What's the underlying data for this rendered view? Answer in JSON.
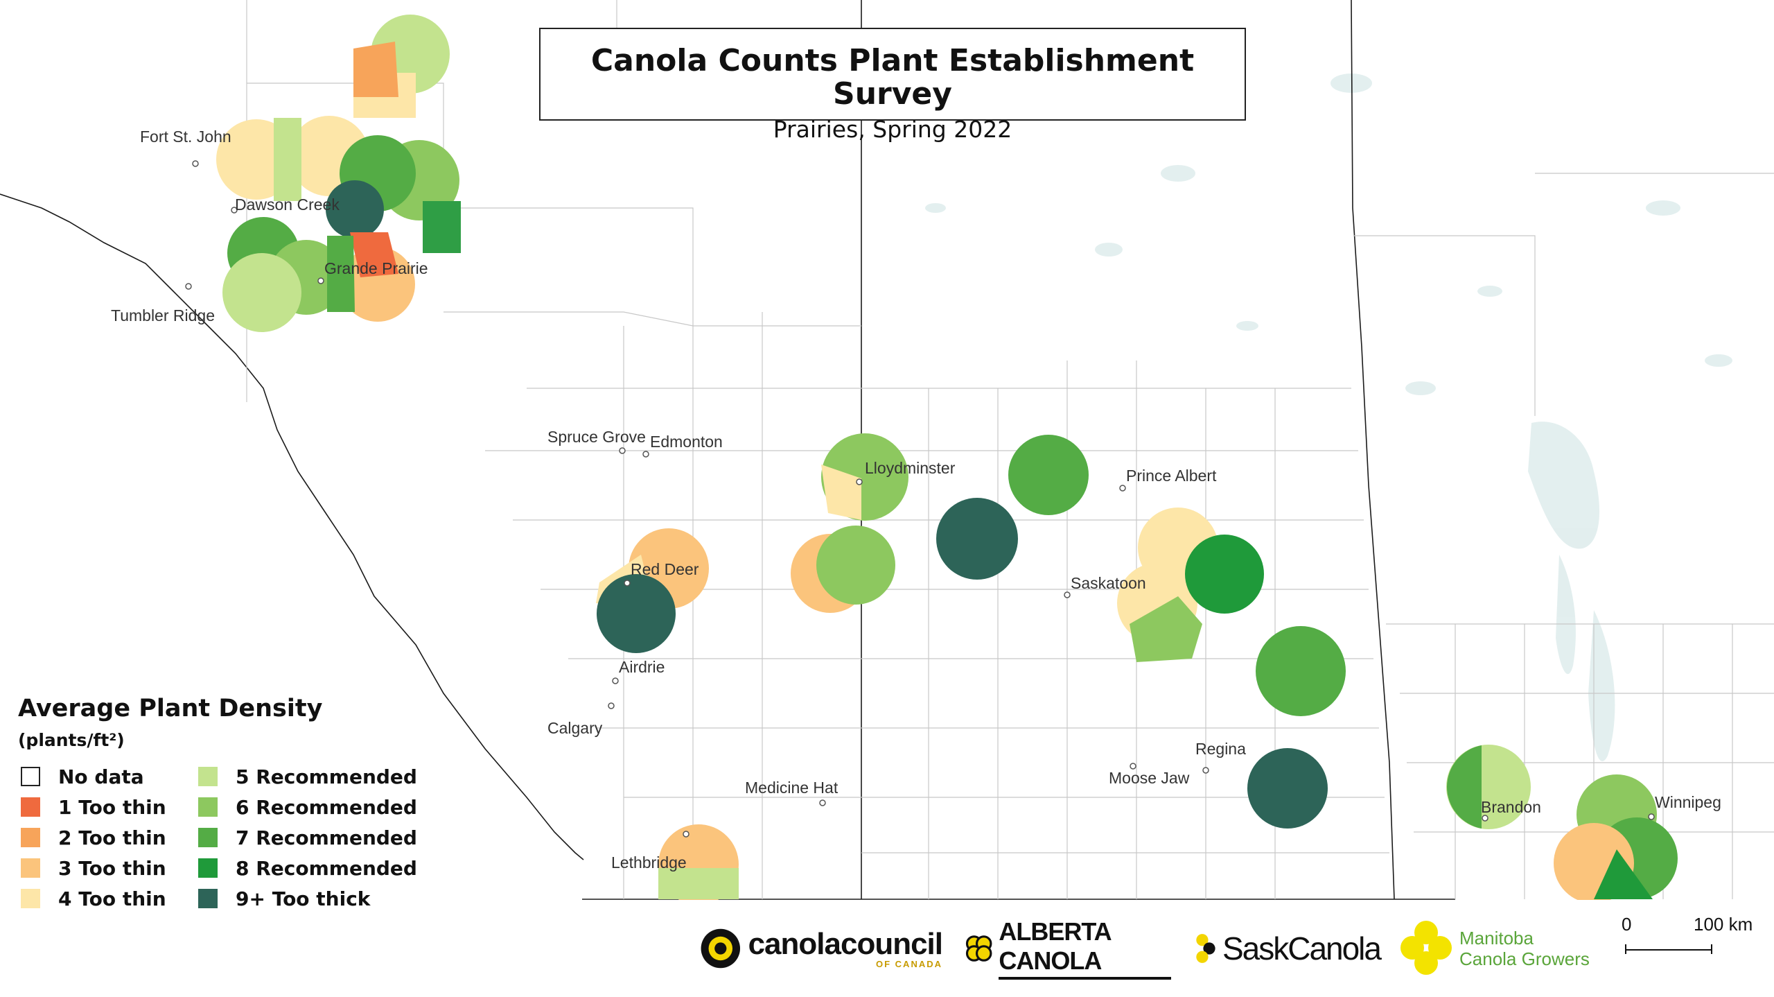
{
  "title": "Canola Counts Plant Establishment Survey",
  "subtitle": "Prairies, Spring 2022",
  "legend": {
    "title": "Average Plant Density",
    "unit": "(plants/ft²)",
    "items": [
      {
        "label": "No data",
        "color": "#ffffff"
      },
      {
        "label": "1 Too thin",
        "color": "#ef6a3e"
      },
      {
        "label": "2 Too thin",
        "color": "#f7a45a"
      },
      {
        "label": "3 Too thin",
        "color": "#fbc47c"
      },
      {
        "label": "4 Too thin",
        "color": "#fde6a8"
      },
      {
        "label": "5 Recommended",
        "color": "#c3e38e"
      },
      {
        "label": "6 Recommended",
        "color": "#8dc85f"
      },
      {
        "label": "7 Recommended",
        "color": "#54ac45"
      },
      {
        "label": "8 Recommended",
        "color": "#1f9a3a"
      },
      {
        "label": "9+ Too thick",
        "color": "#2d6458"
      }
    ]
  },
  "cities": [
    "Fort St. John",
    "Dawson Creek",
    "Grande Prairie",
    "Tumbler Ridge",
    "Spruce Grove",
    "Edmonton",
    "Lloydminster",
    "Prince Albert",
    "Saskatoon",
    "Red Deer",
    "Airdrie",
    "Calgary",
    "Medicine Hat",
    "Lethbridge",
    "Moose Jaw",
    "Regina",
    "Brandon",
    "Winnipeg"
  ],
  "logos": {
    "canola_council": "canolacouncil",
    "canola_council_sub": "OF CANADA",
    "alberta_canola": "ALBERTA CANOLA",
    "sask_canola": "SaskCanola",
    "manitoba_line1": "Manitoba",
    "manitoba_line2": "Canola Growers"
  },
  "scale": {
    "start": "0",
    "end": "100 km"
  }
}
